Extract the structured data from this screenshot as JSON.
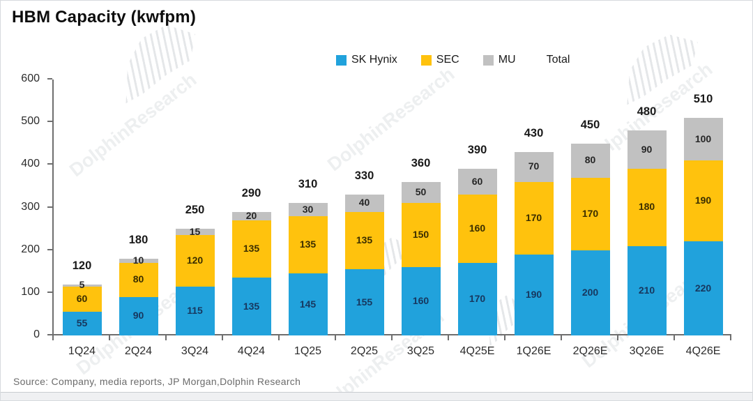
{
  "title": "HBM Capacity  (kwfpm)",
  "source": "Source:  Company,  media reports,  JP Morgan,Dolphin  Research",
  "watermark_text": "DolphinResearch",
  "colors": {
    "sk_hynix": "#21A2DC",
    "sec": "#FFC20D",
    "mu": "#C1C1C1",
    "axis": "#6e6e6e",
    "total_label": "#1a1a1a"
  },
  "legend": [
    {
      "label": "SK Hynix",
      "swatch": "#21A2DC"
    },
    {
      "label": "SEC",
      "swatch": "#FFC20D"
    },
    {
      "label": "MU",
      "swatch": "#C1C1C1"
    },
    {
      "label": "Total",
      "swatch": null
    }
  ],
  "chart_data": {
    "type": "bar",
    "stacked": true,
    "title": "HBM Capacity (kwfpm)",
    "xlabel": "",
    "ylabel": "",
    "ylim": [
      0,
      600
    ],
    "yticks": [
      0,
      100,
      200,
      300,
      400,
      500,
      600
    ],
    "grid": false,
    "legend_position": "top",
    "categories": [
      "1Q24",
      "2Q24",
      "3Q24",
      "4Q24",
      "1Q25",
      "2Q25",
      "3Q25",
      "4Q25E",
      "1Q26E",
      "2Q26E",
      "3Q26E",
      "4Q26E"
    ],
    "series": [
      {
        "name": "SK Hynix",
        "color": "#21A2DC",
        "label_color": "#17375E",
        "values": [
          55,
          90,
          115,
          135,
          145,
          155,
          160,
          170,
          190,
          200,
          210,
          220
        ]
      },
      {
        "name": "SEC",
        "color": "#FFC20D",
        "label_color": "#3a2d00",
        "values": [
          60,
          80,
          120,
          135,
          135,
          135,
          150,
          160,
          170,
          170,
          180,
          190
        ]
      },
      {
        "name": "MU",
        "color": "#C1C1C1",
        "label_color": "#262626",
        "values": [
          5,
          10,
          15,
          20,
          30,
          40,
          50,
          60,
          70,
          80,
          90,
          100
        ]
      }
    ],
    "totals": [
      120,
      180,
      250,
      290,
      310,
      330,
      360,
      390,
      430,
      450,
      480,
      510
    ]
  }
}
